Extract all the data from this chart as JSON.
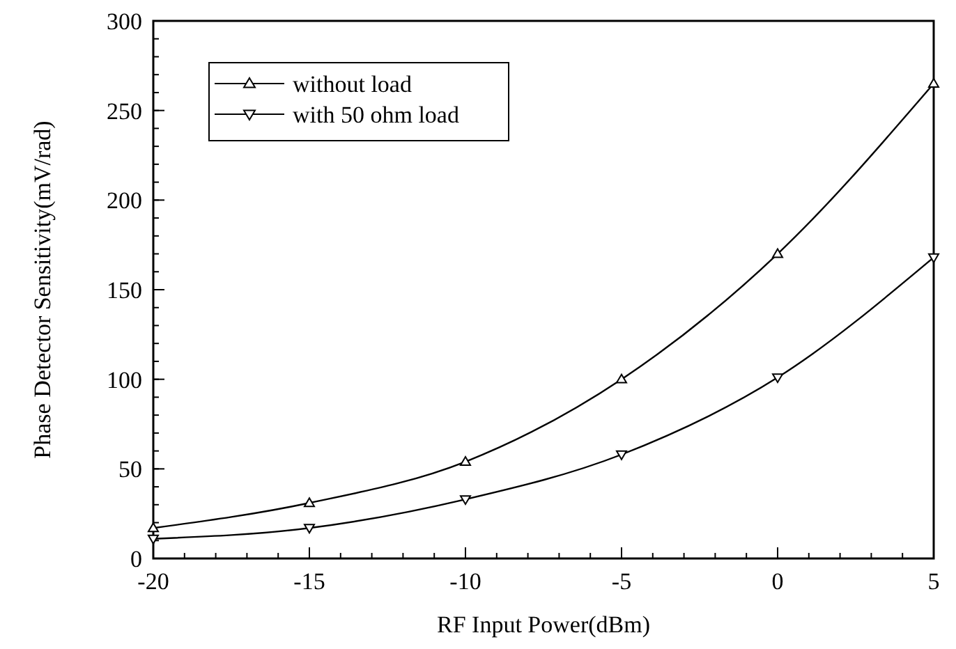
{
  "chart_data": {
    "type": "line",
    "xlabel": "RF Input Power(dBm)",
    "ylabel": "Phase Detector Sensitivity(mV/rad)",
    "x": [
      -20,
      -15,
      -10,
      -5,
      0,
      5
    ],
    "series": [
      {
        "name": "without load",
        "color": "#000000",
        "values": [
          17,
          31,
          54,
          100,
          170,
          265
        ],
        "marker": "triangle",
        "line_style": "solid"
      },
      {
        "name": "with 50 ohm load",
        "color": "#000000",
        "values": [
          11,
          17,
          33,
          58,
          101,
          168
        ],
        "marker": "triangle-down",
        "line_style": "solid"
      }
    ],
    "xlim": [
      -20,
      5
    ],
    "xticks": [
      -20,
      -15,
      -10,
      -5,
      0,
      5
    ],
    "ylim": [
      0,
      300
    ],
    "yticks": [
      0,
      50,
      100,
      150,
      200,
      250,
      300
    ],
    "grid": false,
    "legend": "top left"
  }
}
